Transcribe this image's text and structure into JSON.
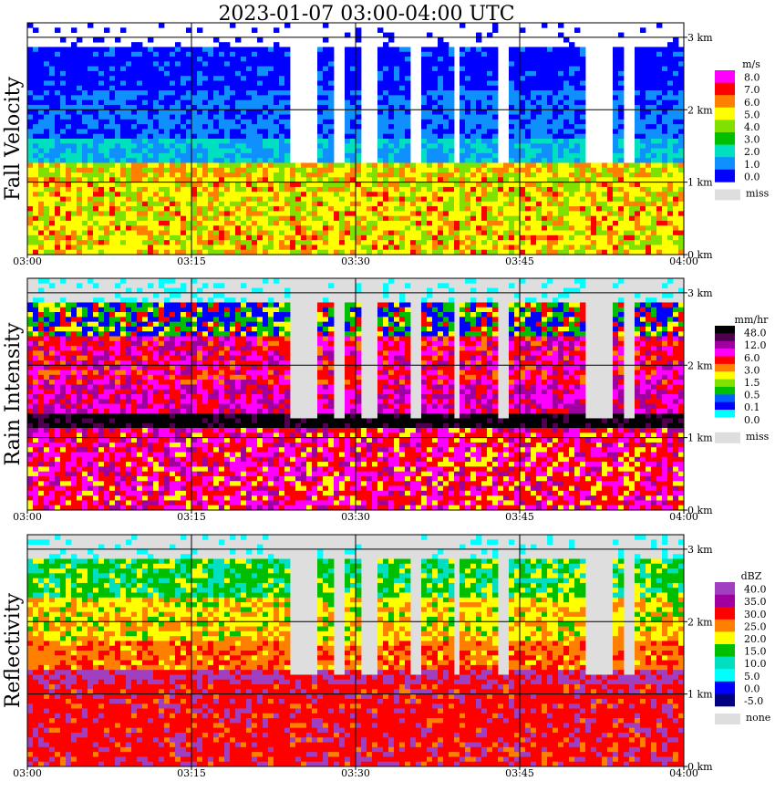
{
  "title": "2023-01-07   03:00-04:00 UTC",
  "chart_data": {
    "type": "heatmap",
    "x_range_minutes": [
      0,
      60
    ],
    "x_ticks": [
      "03:00",
      "03:15",
      "03:30",
      "03:45",
      "04:00"
    ],
    "y_range_km": [
      0,
      3.2
    ],
    "y_ticks": [
      "0 km",
      "1 km",
      "2 km",
      "3 km"
    ],
    "grid": true,
    "panels": [
      {
        "name": "fall-velocity",
        "ylabel": "Fall Velocity",
        "unit": "m/s",
        "legend_labels": [
          "8.0",
          "7.0",
          "6.0",
          "5.0",
          "4.0",
          "3.0",
          "2.0",
          "1.0",
          "0.0"
        ],
        "legend_colors": [
          "#ff00ff",
          "#ff0000",
          "#ff8000",
          "#ffff00",
          "#80e000",
          "#00bf00",
          "#00e0c0",
          "#1090ff",
          "#0000ff"
        ],
        "missing_label": "miss",
        "missing_color": "#dedede"
      },
      {
        "name": "rain-intensity",
        "ylabel": "Rain Intensity",
        "unit": "mm/hr",
        "legend_labels": [
          "48.0",
          "12.0",
          "6.0",
          "3.0",
          "1.5",
          "0.5",
          "0.1",
          "0.0"
        ],
        "legend_colors": [
          "#000000",
          "#500050",
          "#a000a0",
          "#ff00ff",
          "#ff0000",
          "#ff8000",
          "#ffff00",
          "#80e000",
          "#00bf00",
          "#0060ff",
          "#0000ff",
          "#00ffff",
          "#ffffff"
        ],
        "missing_label": "miss",
        "missing_color": "#dedede"
      },
      {
        "name": "reflectivity",
        "ylabel": "Reflectivity",
        "unit": "dBZ",
        "legend_labels": [
          "40.0",
          "35.0",
          "30.0",
          "25.0",
          "20.0",
          "15.0",
          "10.0",
          "5.0",
          "0.0",
          "-5.0"
        ],
        "legend_colors": [
          "#a040c0",
          "#a000a0",
          "#ff0000",
          "#ff8000",
          "#ffff00",
          "#00bf00",
          "#00e0c0",
          "#00ffff",
          "#0000ff",
          "#000080"
        ],
        "missing_label": "none",
        "missing_color": "#dedede"
      }
    ]
  }
}
